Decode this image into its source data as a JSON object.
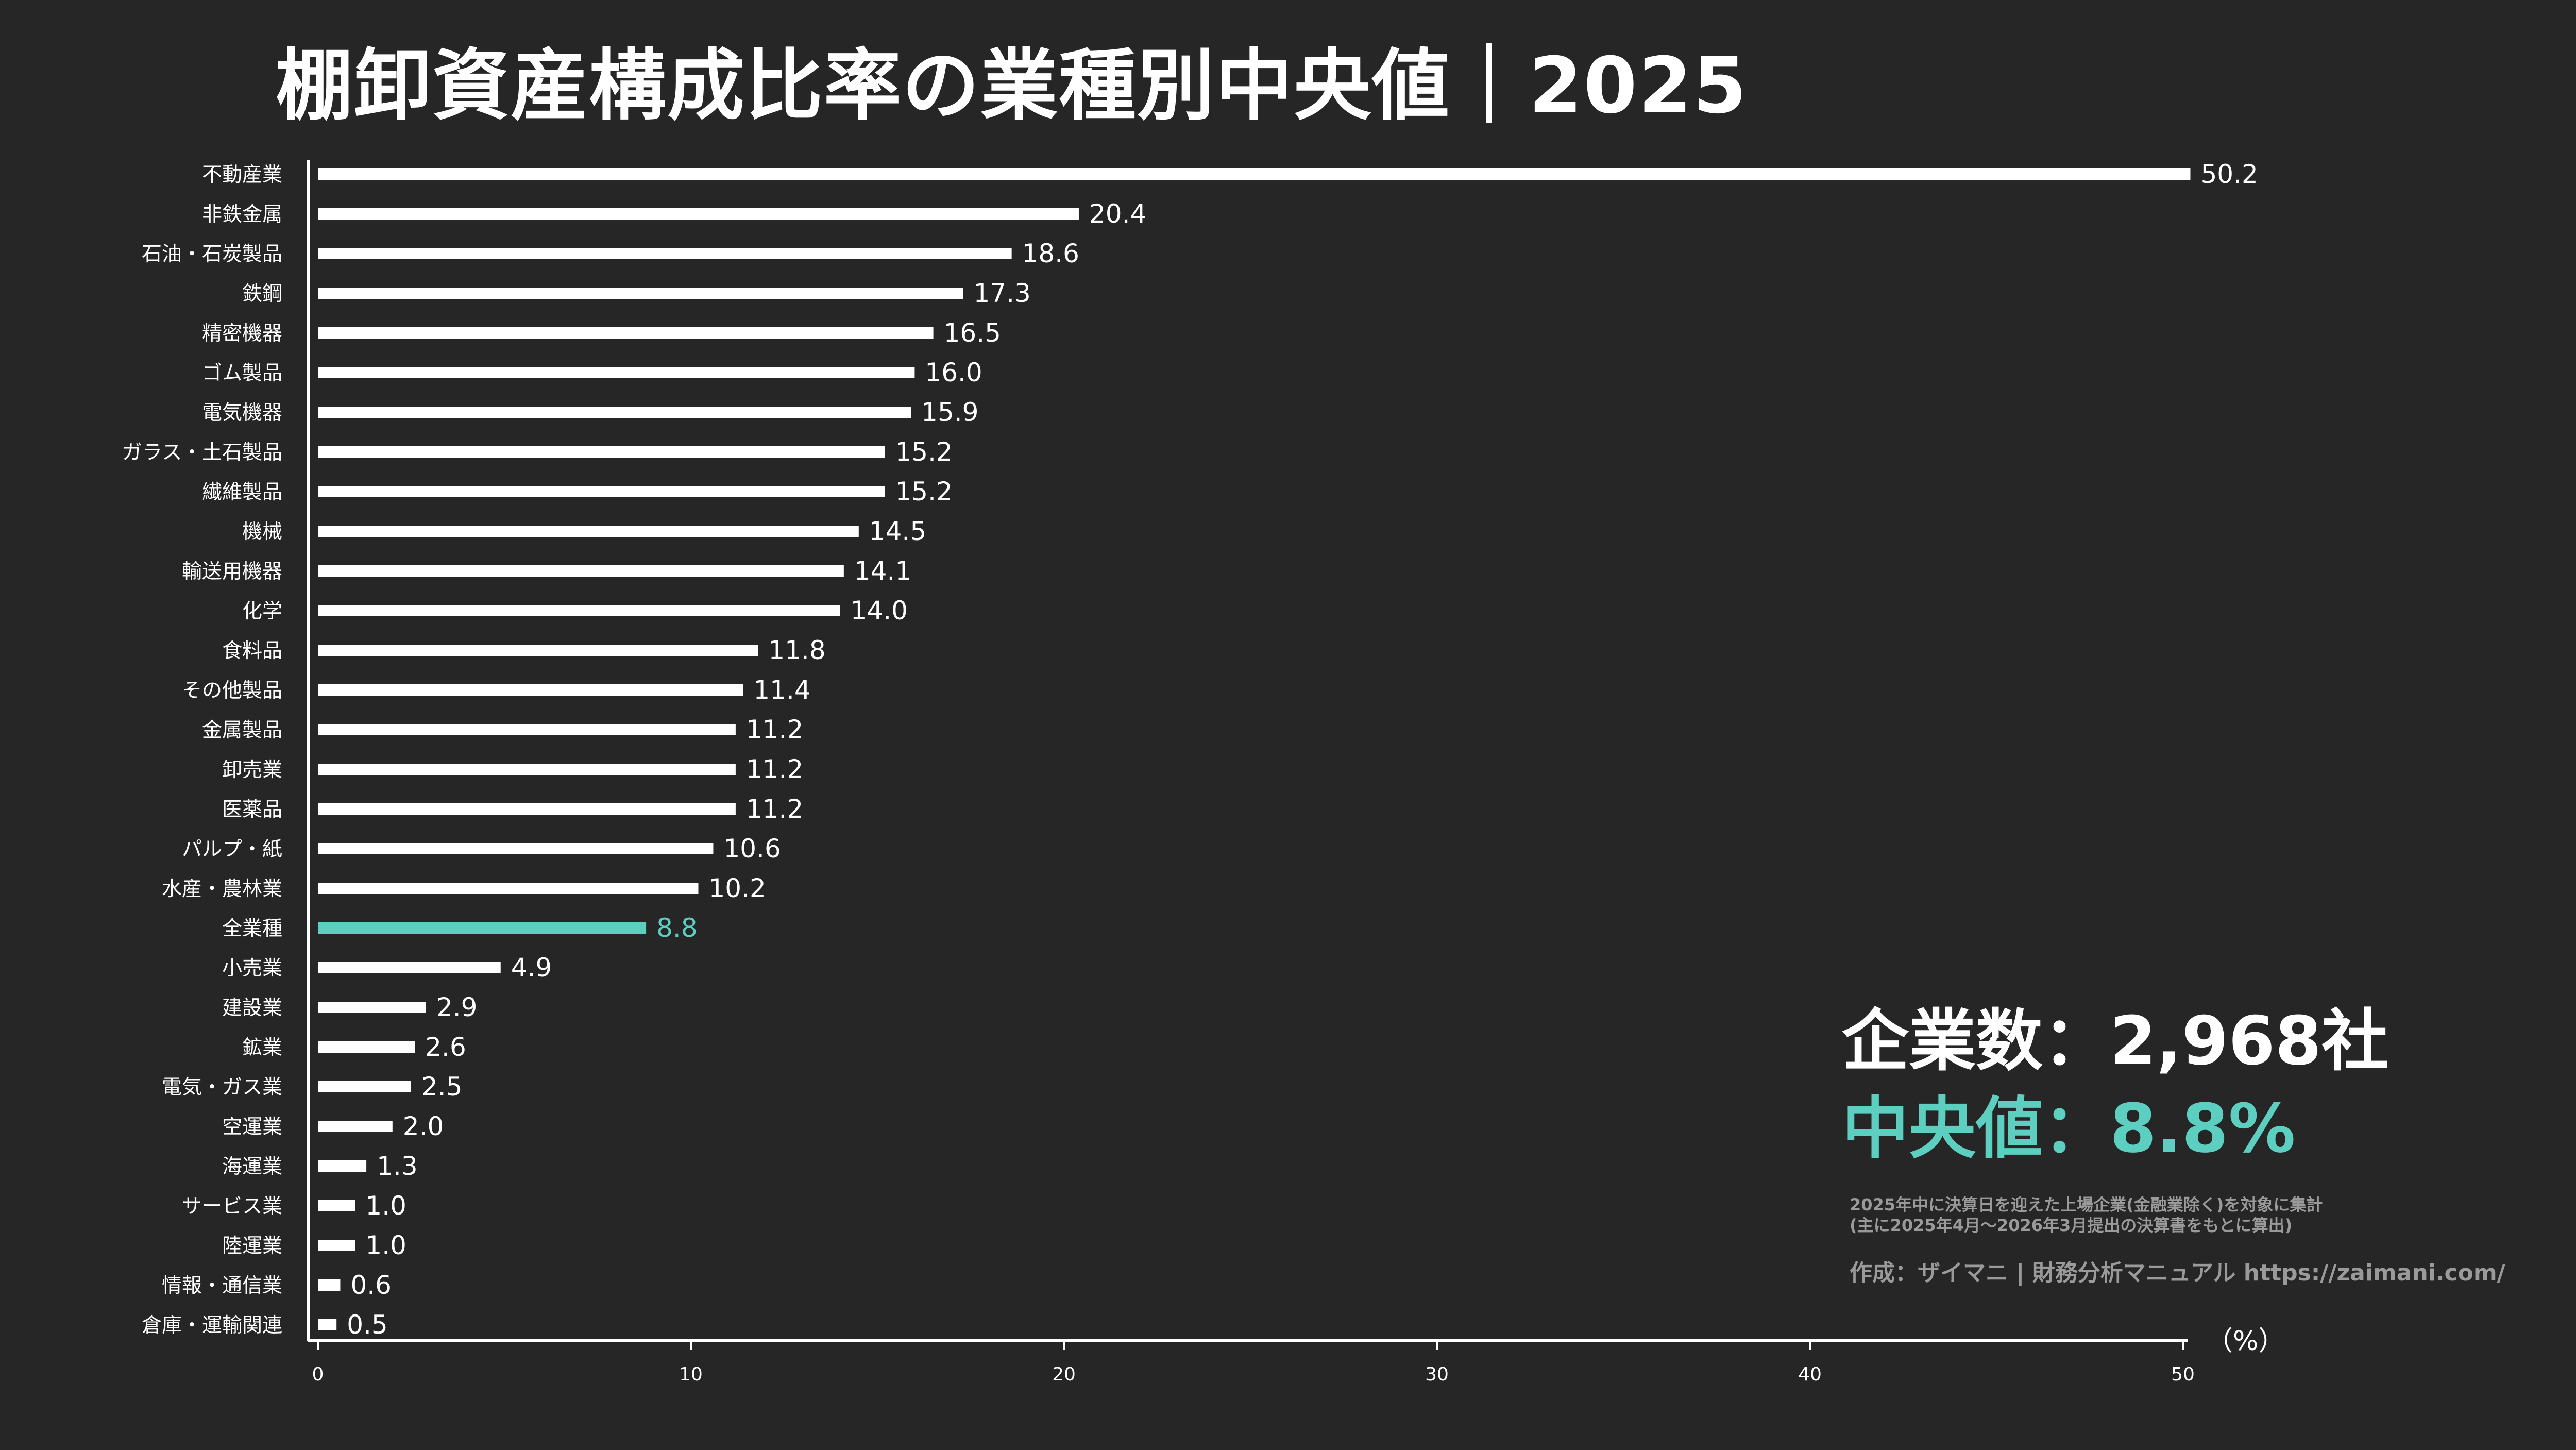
{
  "title": "棚卸資産構成比率の業種別中央値｜2025",
  "stats": {
    "companies": "企業数：2,968社",
    "median": "中央値：8.8%"
  },
  "notes": [
    "2025年中に決算日を迎えた上場企業(金融業除く)を対象に集計",
    "(主に2025年4月〜2026年3月提出の決算書をもとに算出)"
  ],
  "credit": "作成：ザイマニ | 財務分析マニュアル https://zaimani.com/",
  "colors": {
    "bar": "#ffffff",
    "highlight": "#5ccfc1",
    "background": "#262626",
    "note": "#9a9a9a"
  },
  "chart_data": {
    "type": "bar",
    "orientation": "horizontal",
    "categories": [
      "不動産業",
      "非鉄金属",
      "石油・石炭製品",
      "鉄鋼",
      "精密機器",
      "ゴム製品",
      "電気機器",
      "ガラス・土石製品",
      "繊維製品",
      "機械",
      "輸送用機器",
      "化学",
      "食料品",
      "その他製品",
      "金属製品",
      "卸売業",
      "医薬品",
      "パルプ・紙",
      "水産・農林業",
      "全業種",
      "小売業",
      "建設業",
      "鉱業",
      "電気・ガス業",
      "空運業",
      "海運業",
      "サービス業",
      "陸運業",
      "情報・通信業",
      "倉庫・運輸関連"
    ],
    "values": [
      50.2,
      20.4,
      18.6,
      17.3,
      16.5,
      16.0,
      15.9,
      15.2,
      15.2,
      14.5,
      14.1,
      14.0,
      11.8,
      11.4,
      11.2,
      11.2,
      11.2,
      10.6,
      10.2,
      8.8,
      4.9,
      2.9,
      2.6,
      2.5,
      2.0,
      1.3,
      1.0,
      1.0,
      0.6,
      0.5
    ],
    "value_labels": [
      "50.2",
      "20.4",
      "18.6",
      "17.3",
      "16.5",
      "16.0",
      "15.9",
      "15.2",
      "15.2",
      "14.5",
      "14.1",
      "14.0",
      "11.8",
      "11.4",
      "11.2",
      "11.2",
      "11.2",
      "10.6",
      "10.2",
      "8.8",
      "4.9",
      "2.9",
      "2.6",
      "2.5",
      "2.0",
      "1.3",
      "1.0",
      "1.0",
      "0.6",
      "0.5"
    ],
    "highlight_category": "全業種",
    "xlim": [
      0,
      50
    ],
    "xticks": [
      0,
      10,
      20,
      30,
      40,
      50
    ],
    "xlabel": "（%）",
    "grid": false
  }
}
